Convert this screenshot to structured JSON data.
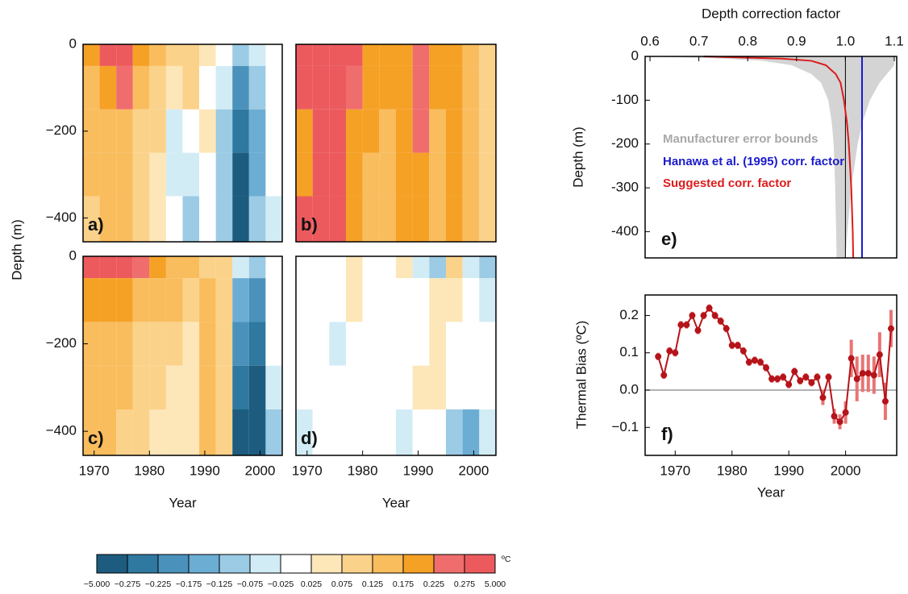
{
  "chart_data": [
    {
      "type": "heatmap",
      "label": "a)",
      "ylabel": "Depth (m)",
      "xlim": [
        1968,
        2004
      ],
      "ylim": [
        -455,
        0
      ],
      "yticks": [
        {
          "value": -400,
          "label": "−400"
        },
        {
          "value": -200,
          "label": "−200"
        },
        0
      ],
      "year_edges": [
        1968,
        1971,
        1974,
        1977,
        1980,
        1983,
        1986,
        1989,
        1992,
        1995,
        1998,
        2001,
        2004
      ],
      "depth_edges": [
        0,
        -50,
        -150,
        -250,
        -350,
        -455
      ],
      "z": [
        [
          0.2,
          0.3,
          0.3,
          0.2,
          0.15,
          0.1,
          0.1,
          0.05,
          0.0,
          -0.1,
          -0.05,
          0.0
        ],
        [
          0.15,
          0.2,
          0.25,
          0.15,
          0.1,
          0.05,
          0.1,
          0.0,
          -0.05,
          -0.2,
          -0.1,
          0.0
        ],
        [
          0.15,
          0.15,
          0.15,
          0.1,
          0.1,
          -0.05,
          0.0,
          0.05,
          -0.1,
          -0.25,
          -0.15,
          0.0
        ],
        [
          0.15,
          0.15,
          0.15,
          0.1,
          0.05,
          -0.05,
          -0.05,
          0.0,
          -0.1,
          -0.3,
          -0.15,
          0.0
        ],
        [
          0.1,
          0.15,
          0.15,
          0.1,
          0.05,
          0.0,
          -0.1,
          0.0,
          -0.1,
          -0.3,
          -0.1,
          -0.05
        ]
      ]
    },
    {
      "type": "heatmap",
      "label": "b)",
      "xlim": [
        1968,
        2004
      ],
      "ylim": [
        -455,
        0
      ],
      "year_edges": [
        1968,
        1971,
        1974,
        1977,
        1980,
        1983,
        1986,
        1989,
        1992,
        1995,
        1998,
        2001,
        2004
      ],
      "depth_edges": [
        0,
        -50,
        -150,
        -250,
        -350,
        -455
      ],
      "z": [
        [
          0.3,
          0.3,
          0.3,
          0.3,
          0.2,
          0.2,
          0.2,
          0.25,
          0.2,
          0.2,
          0.15,
          0.1
        ],
        [
          0.3,
          0.3,
          0.3,
          0.25,
          0.2,
          0.2,
          0.2,
          0.25,
          0.2,
          0.2,
          0.15,
          0.1
        ],
        [
          0.2,
          0.3,
          0.3,
          0.2,
          0.2,
          0.15,
          0.2,
          0.25,
          0.15,
          0.2,
          0.15,
          0.1
        ],
        [
          0.2,
          0.3,
          0.3,
          0.2,
          0.15,
          0.15,
          0.2,
          0.2,
          0.15,
          0.2,
          0.15,
          0.1
        ],
        [
          0.3,
          0.3,
          0.3,
          0.2,
          0.15,
          0.15,
          0.2,
          0.2,
          0.15,
          0.2,
          0.15,
          0.1
        ]
      ]
    },
    {
      "type": "heatmap",
      "label": "c)",
      "xlabel": "Year",
      "xlim": [
        1968,
        2004
      ],
      "ylim": [
        -455,
        0
      ],
      "xticks": [
        1970,
        1980,
        1990,
        2000
      ],
      "yticks": [
        {
          "value": -400,
          "label": "−400"
        },
        {
          "value": -200,
          "label": "−200"
        },
        0
      ],
      "year_edges": [
        1968,
        1971,
        1974,
        1977,
        1980,
        1983,
        1986,
        1989,
        1992,
        1995,
        1998,
        2001,
        2004
      ],
      "depth_edges": [
        0,
        -50,
        -150,
        -250,
        -350,
        -455
      ],
      "z": [
        [
          0.3,
          0.3,
          0.3,
          0.25,
          0.2,
          0.15,
          0.15,
          0.1,
          0.1,
          -0.05,
          -0.1,
          0.0
        ],
        [
          0.2,
          0.2,
          0.2,
          0.15,
          0.15,
          0.15,
          0.1,
          0.15,
          0.1,
          -0.15,
          -0.2,
          0.0
        ],
        [
          0.15,
          0.15,
          0.15,
          0.1,
          0.1,
          0.1,
          0.05,
          0.15,
          0.1,
          -0.2,
          -0.25,
          0.0
        ],
        [
          0.15,
          0.15,
          0.15,
          0.1,
          0.1,
          0.05,
          0.05,
          0.15,
          0.1,
          -0.25,
          -0.3,
          -0.05
        ],
        [
          0.15,
          0.15,
          0.1,
          0.1,
          0.05,
          0.05,
          0.05,
          0.15,
          0.1,
          -0.3,
          -0.3,
          -0.1
        ]
      ]
    },
    {
      "type": "heatmap",
      "label": "d)",
      "xlabel": "Year",
      "xlim": [
        1968,
        2004
      ],
      "ylim": [
        -455,
        0
      ],
      "xticks": [
        1970,
        1980,
        1990,
        2000
      ],
      "year_edges": [
        1968,
        1971,
        1974,
        1977,
        1980,
        1983,
        1986,
        1989,
        1992,
        1995,
        1998,
        2001,
        2004
      ],
      "depth_edges": [
        0,
        -50,
        -150,
        -250,
        -350,
        -455
      ],
      "z": [
        [
          0.0,
          0.0,
          0.0,
          0.05,
          0.0,
          0.0,
          0.05,
          -0.05,
          -0.1,
          0.1,
          -0.05,
          -0.1
        ],
        [
          0.0,
          0.0,
          0.0,
          0.05,
          0.0,
          0.0,
          0.0,
          0.0,
          0.05,
          0.05,
          0.0,
          -0.05
        ],
        [
          0.0,
          0.0,
          -0.05,
          0.0,
          0.0,
          0.0,
          0.0,
          0.0,
          0.05,
          0.0,
          0.0,
          0.0
        ],
        [
          0.0,
          0.0,
          0.0,
          0.0,
          0.0,
          0.0,
          0.0,
          0.05,
          0.05,
          0.0,
          0.0,
          0.0
        ],
        [
          -0.05,
          0.0,
          0.0,
          0.0,
          0.0,
          0.0,
          -0.05,
          0.0,
          0.0,
          -0.1,
          -0.15,
          -0.05
        ]
      ]
    },
    {
      "type": "profile",
      "label": "e)",
      "xlabel": "Depth correction factor",
      "ylabel": "Depth (m)",
      "xlim": [
        0.59,
        1.105
      ],
      "ylim": [
        -460,
        0
      ],
      "xticks": [
        0.6,
        0.7,
        0.8,
        0.9,
        {
          "value": 1.0,
          "label": "1.0"
        },
        1.1
      ],
      "yticks": [
        0,
        -100,
        -200,
        -300,
        -400
      ],
      "yticks_labels_fix": null,
      "reference_x": 1,
      "depth": [
        0,
        -5,
        -10,
        -20,
        -40,
        -60,
        -100,
        -150,
        -200,
        -300,
        -400,
        -460
      ],
      "band": {
        "name": "Manufacturer error bounds",
        "color": "#d4d4d4",
        "label_color": "#a8a8a8",
        "lower": [
          0.6,
          0.75,
          0.83,
          0.89,
          0.93,
          0.95,
          0.965,
          0.972,
          0.976,
          0.979,
          0.981,
          0.982
        ],
        "upper": [
          1.1,
          1.1,
          1.1,
          1.1,
          1.085,
          1.07,
          1.05,
          1.035,
          1.025,
          1.012,
          1.004,
          1.0
        ]
      },
      "series": [
        {
          "name": "Hanawa et al. (1995) corr. factor",
          "color": "#1a1acc",
          "values": [
            1.034,
            1.034,
            1.034,
            1.034,
            1.034,
            1.034,
            1.034,
            1.034,
            1.034,
            1.034,
            1.034,
            1.034
          ]
        },
        {
          "name": "Suggested corr. factor",
          "color": "#dd1c1c",
          "values": [
            0.71,
            0.87,
            0.93,
            0.96,
            0.98,
            0.99,
            0.997,
            1.003,
            1.007,
            1.012,
            1.015,
            1.016
          ]
        }
      ]
    },
    {
      "type": "line",
      "label": "f)",
      "xlabel": "Year",
      "ylabel": "Thermal Bias (ºC)",
      "xlim": [
        1964.7,
        2009
      ],
      "ylim": [
        -0.175,
        0.255
      ],
      "xticks": [
        1970,
        1980,
        1990,
        2000
      ],
      "yticks": [
        {
          "value": -0.1,
          "label": "−0.1"
        },
        {
          "value": 0,
          "label": "0.0"
        },
        0.1,
        0.2
      ],
      "reference_y": 0,
      "x": [
        1967,
        1968,
        1969,
        1970,
        1971,
        1972,
        1973,
        1974,
        1975,
        1976,
        1977,
        1978,
        1979,
        1980,
        1981,
        1982,
        1983,
        1984,
        1985,
        1986,
        1987,
        1988,
        1989,
        1990,
        1991,
        1992,
        1993,
        1994,
        1995,
        1996,
        1997,
        1998,
        1999,
        2000,
        2001,
        2002,
        2003,
        2004,
        2005,
        2006,
        2007,
        2008
      ],
      "series": [
        {
          "color": "#b5141a",
          "error_color": "#e87474",
          "values": [
            0.09,
            0.04,
            0.105,
            0.1,
            0.175,
            0.175,
            0.2,
            0.16,
            0.2,
            0.22,
            0.2,
            0.185,
            0.165,
            0.12,
            0.12,
            0.105,
            0.075,
            0.08,
            0.075,
            0.06,
            0.03,
            0.03,
            0.035,
            0.015,
            0.05,
            0.025,
            0.035,
            0.02,
            0.035,
            -0.02,
            0.035,
            -0.07,
            -0.085,
            -0.06,
            0.085,
            0.03,
            0.045,
            0.045,
            0.04,
            0.095,
            -0.03,
            0.165
          ],
          "errors": [
            0.01,
            0.01,
            0.01,
            0.01,
            0.01,
            0.01,
            0.01,
            0.01,
            0.01,
            0.01,
            0.01,
            0.01,
            0.01,
            0.01,
            0.01,
            0.01,
            0.01,
            0.01,
            0.01,
            0.01,
            0.01,
            0.01,
            0.01,
            0.01,
            0.01,
            0.01,
            0.01,
            0.01,
            0.01,
            0.02,
            0.01,
            0.02,
            0.02,
            0.03,
            0.05,
            0.06,
            0.05,
            0.05,
            0.05,
            0.06,
            0.05,
            0.05
          ]
        }
      ]
    }
  ],
  "colorbar": {
    "unit": "ºC",
    "bounds": [
      {
        "value": -5,
        "label": "−5.000"
      },
      {
        "value": -0.275,
        "label": "−0.275"
      },
      {
        "value": -0.225,
        "label": "−0.225"
      },
      {
        "value": -0.175,
        "label": "−0.175"
      },
      {
        "value": -0.125,
        "label": "−0.125"
      },
      {
        "value": -0.075,
        "label": "−0.075"
      },
      {
        "value": -0.025,
        "label": "−0.025"
      },
      0.025,
      0.075,
      0.125,
      0.175,
      0.225,
      0.275,
      {
        "value": 5,
        "label": "5.000"
      }
    ],
    "colors": [
      "#1d5c7f",
      "#2f78a0",
      "#4a92bb",
      "#6cadd3",
      "#9bcbe5",
      "#d2ecf6",
      "#ffffff",
      "#fde6b8",
      "#fbd28a",
      "#f9bd5e",
      "#f5a126",
      "#ef6d6d",
      "#ec5a5e"
    ]
  }
}
